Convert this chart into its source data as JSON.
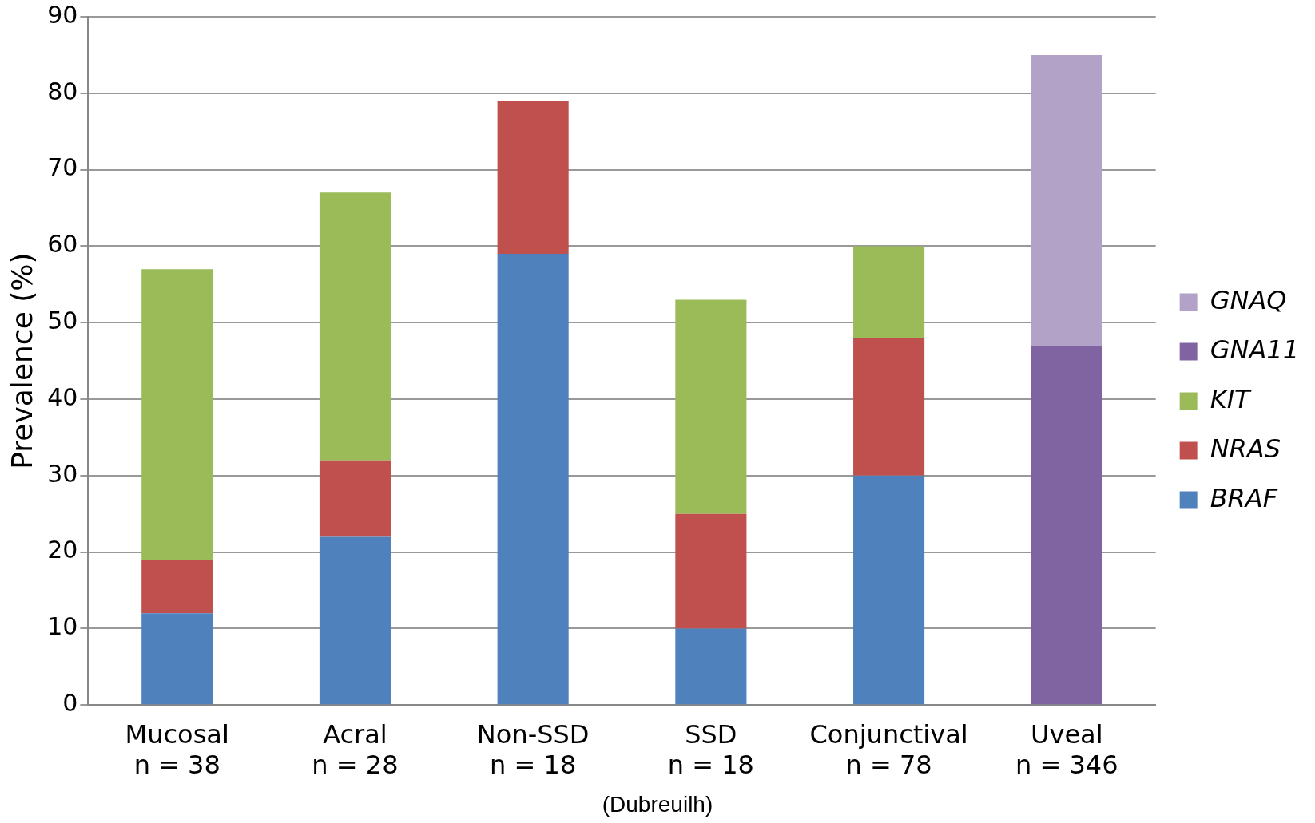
{
  "chart_data": {
    "type": "bar",
    "stacked": true,
    "categories": [
      "Mucosal\nn = 38",
      "Acral\nn = 28",
      "Non-SSD\nn = 18",
      "SSD\nn = 18",
      "Conjunctival\nn = 78",
      "Uveal\nn = 346"
    ],
    "series": [
      {
        "name": "BRAF",
        "color": "#4f81bd",
        "values": [
          12,
          22,
          59,
          10,
          30,
          null
        ]
      },
      {
        "name": "NRAS",
        "color": "#c0504d",
        "values": [
          7,
          10,
          20,
          15,
          18,
          null
        ]
      },
      {
        "name": "KIT",
        "color": "#9bbb59",
        "values": [
          38,
          35,
          null,
          28,
          12,
          null
        ]
      },
      {
        "name": "GNA11",
        "color": "#8064a2",
        "values": [
          null,
          null,
          null,
          null,
          null,
          47
        ]
      },
      {
        "name": "GNAQ",
        "color": "#b3a2c7",
        "values": [
          null,
          null,
          null,
          null,
          null,
          38
        ]
      }
    ],
    "ylabel": "Prevalence (%)",
    "ylim": [
      0,
      90
    ],
    "yticks": [
      0,
      10,
      20,
      30,
      40,
      50,
      60,
      70,
      80,
      90
    ],
    "grid": "y",
    "legend": "right",
    "annotations": [
      "(Dubreuilh)"
    ]
  }
}
